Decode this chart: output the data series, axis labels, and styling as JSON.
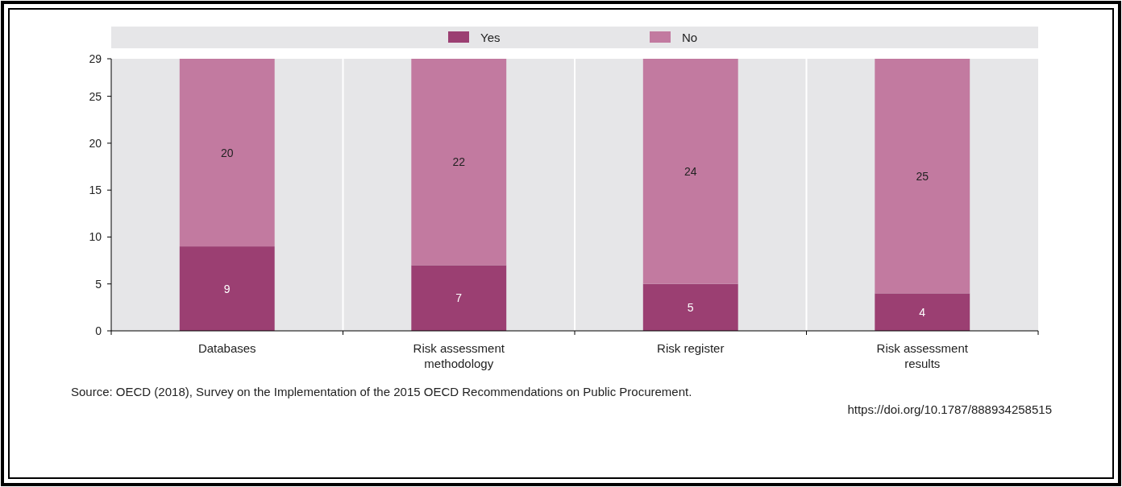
{
  "chart_data": {
    "type": "bar",
    "stacked": true,
    "categories": [
      "Databases",
      "Risk assessment methodology",
      "Risk register",
      "Risk assessment results"
    ],
    "series": [
      {
        "name": "Yes",
        "color": "#9b3f72",
        "values": [
          9,
          7,
          5,
          4
        ]
      },
      {
        "name": "No",
        "color": "#c27aa0",
        "values": [
          20,
          22,
          24,
          25
        ]
      }
    ],
    "ylim": [
      0,
      29
    ],
    "yticks": [
      0,
      5,
      10,
      15,
      20,
      25,
      29
    ],
    "data_labels": true,
    "legend": "top",
    "grid": false,
    "annotations": [
      "Source: OECD (2018), Survey on the Implementation of the 2015 OECD Recommendations on Public Procurement.",
      "https://doi.org/10.1787/888934258515"
    ]
  }
}
